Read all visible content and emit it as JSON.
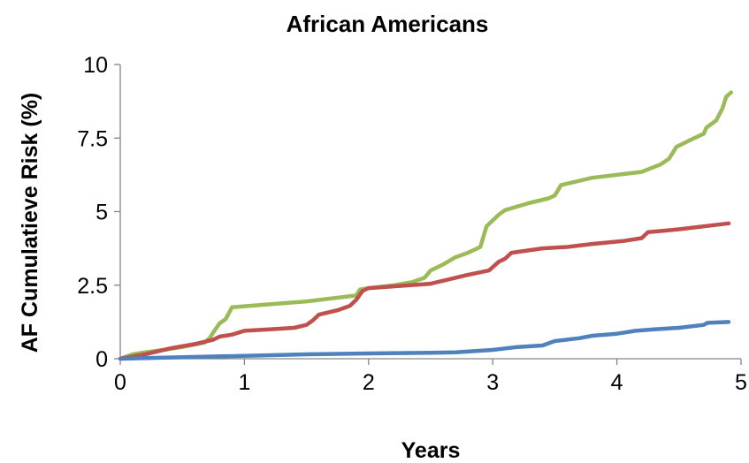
{
  "chart_data": {
    "type": "line",
    "title": "African Americans",
    "xlabel": "Years",
    "ylabel": "AF Cumulatieve Risk (%)",
    "xlim": [
      0,
      5
    ],
    "ylim": [
      0,
      10
    ],
    "x_ticks": [
      "0",
      "1",
      "2",
      "3",
      "4",
      "5"
    ],
    "y_ticks": [
      "0",
      "2.5",
      "5",
      "7.5",
      "10"
    ],
    "grid": false,
    "legend": "none",
    "series": [
      {
        "color": "#9BBB59",
        "points": [
          [
            0,
            0
          ],
          [
            0.1,
            0.15
          ],
          [
            0.2,
            0.22
          ],
          [
            0.35,
            0.3
          ],
          [
            0.5,
            0.4
          ],
          [
            0.68,
            0.55
          ],
          [
            0.72,
            0.7
          ],
          [
            0.75,
            0.9
          ],
          [
            0.8,
            1.2
          ],
          [
            0.85,
            1.35
          ],
          [
            0.9,
            1.75
          ],
          [
            1.2,
            1.85
          ],
          [
            1.5,
            1.95
          ],
          [
            1.9,
            2.15
          ],
          [
            1.93,
            2.35
          ],
          [
            2.0,
            2.4
          ],
          [
            2.2,
            2.5
          ],
          [
            2.35,
            2.6
          ],
          [
            2.45,
            2.75
          ],
          [
            2.5,
            3.0
          ],
          [
            2.6,
            3.2
          ],
          [
            2.7,
            3.45
          ],
          [
            2.8,
            3.6
          ],
          [
            2.9,
            3.8
          ],
          [
            2.95,
            4.5
          ],
          [
            3.05,
            4.9
          ],
          [
            3.1,
            5.05
          ],
          [
            3.3,
            5.3
          ],
          [
            3.45,
            5.45
          ],
          [
            3.5,
            5.55
          ],
          [
            3.55,
            5.9
          ],
          [
            3.65,
            6.0
          ],
          [
            3.8,
            6.15
          ],
          [
            4.0,
            6.25
          ],
          [
            4.2,
            6.35
          ],
          [
            4.35,
            6.6
          ],
          [
            4.42,
            6.8
          ],
          [
            4.48,
            7.2
          ],
          [
            4.6,
            7.45
          ],
          [
            4.7,
            7.65
          ],
          [
            4.72,
            7.85
          ],
          [
            4.8,
            8.1
          ],
          [
            4.85,
            8.5
          ],
          [
            4.88,
            8.9
          ],
          [
            4.92,
            9.05
          ]
        ]
      },
      {
        "color": "#C0504D",
        "points": [
          [
            0,
            0
          ],
          [
            0.2,
            0.15
          ],
          [
            0.4,
            0.35
          ],
          [
            0.6,
            0.5
          ],
          [
            0.75,
            0.65
          ],
          [
            0.8,
            0.75
          ],
          [
            0.9,
            0.82
          ],
          [
            1.0,
            0.95
          ],
          [
            1.2,
            1.0
          ],
          [
            1.4,
            1.05
          ],
          [
            1.5,
            1.15
          ],
          [
            1.55,
            1.3
          ],
          [
            1.6,
            1.5
          ],
          [
            1.75,
            1.65
          ],
          [
            1.85,
            1.8
          ],
          [
            1.9,
            2.0
          ],
          [
            1.95,
            2.3
          ],
          [
            2.0,
            2.4
          ],
          [
            2.5,
            2.55
          ],
          [
            2.65,
            2.7
          ],
          [
            2.8,
            2.85
          ],
          [
            2.97,
            3.0
          ],
          [
            3.05,
            3.3
          ],
          [
            3.1,
            3.4
          ],
          [
            3.15,
            3.6
          ],
          [
            3.4,
            3.75
          ],
          [
            3.6,
            3.8
          ],
          [
            3.8,
            3.9
          ],
          [
            4.05,
            4.0
          ],
          [
            4.2,
            4.1
          ],
          [
            4.25,
            4.3
          ],
          [
            4.5,
            4.4
          ],
          [
            4.9,
            4.6
          ]
        ]
      },
      {
        "color": "#4F81BD",
        "points": [
          [
            0,
            0
          ],
          [
            0.5,
            0.05
          ],
          [
            1.0,
            0.1
          ],
          [
            1.5,
            0.15
          ],
          [
            2.0,
            0.18
          ],
          [
            2.5,
            0.2
          ],
          [
            2.7,
            0.22
          ],
          [
            3.0,
            0.3
          ],
          [
            3.2,
            0.4
          ],
          [
            3.4,
            0.45
          ],
          [
            3.5,
            0.6
          ],
          [
            3.7,
            0.7
          ],
          [
            3.8,
            0.78
          ],
          [
            4.0,
            0.85
          ],
          [
            4.15,
            0.95
          ],
          [
            4.3,
            1.0
          ],
          [
            4.5,
            1.05
          ],
          [
            4.7,
            1.15
          ],
          [
            4.73,
            1.22
          ],
          [
            4.9,
            1.25
          ]
        ]
      }
    ]
  }
}
